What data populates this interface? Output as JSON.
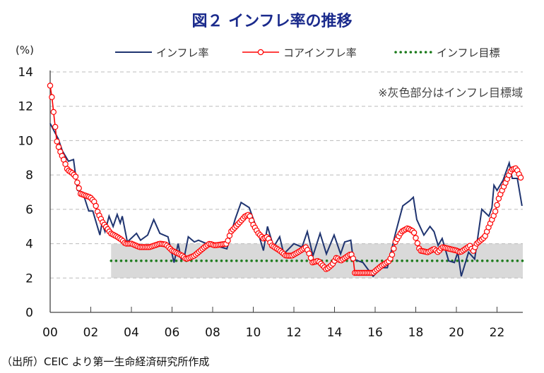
{
  "chart_data": {
    "type": "line",
    "title": "図２ インフレ率の推移",
    "ylabel": "(%)",
    "note": "※灰色部分はインフレ目標域",
    "source": "（出所）CEIC より第一生命経済研究所作成",
    "ylim": [
      0,
      14
    ],
    "xlim": [
      2000,
      2023.3
    ],
    "yticks": [
      "0",
      "2",
      "4",
      "6",
      "8",
      "10",
      "12",
      "14"
    ],
    "xticks": [
      {
        "year": 2000,
        "label": "00"
      },
      {
        "year": 2002,
        "label": "02"
      },
      {
        "year": 2004,
        "label": "04"
      },
      {
        "year": 2006,
        "label": "06"
      },
      {
        "year": 2008,
        "label": "08"
      },
      {
        "year": 2010,
        "label": "10"
      },
      {
        "year": 2012,
        "label": "12"
      },
      {
        "year": 2014,
        "label": "14"
      },
      {
        "year": 2016,
        "label": "16"
      },
      {
        "year": 2018,
        "label": "18"
      },
      {
        "year": 2020,
        "label": "20"
      },
      {
        "year": 2022,
        "label": "22"
      }
    ],
    "grid": true,
    "legend_position": "top-right",
    "target_band": {
      "from_year": 2003,
      "low": 2,
      "high": 4,
      "color": "#d9d9d9"
    },
    "series": [
      {
        "name": "インフレ率",
        "color": "#1f3470",
        "style": "line",
        "points": [
          [
            2000,
            11.0
          ],
          [
            2000.4,
            10.1
          ],
          [
            2000.6,
            9.4
          ],
          [
            2000.9,
            8.8
          ],
          [
            2001.15,
            8.9
          ],
          [
            2001.35,
            7.1
          ],
          [
            2001.6,
            7.0
          ],
          [
            2001.9,
            5.9
          ],
          [
            2002.1,
            5.9
          ],
          [
            2002.45,
            4.5
          ],
          [
            2002.55,
            5.2
          ],
          [
            2002.7,
            4.7
          ],
          [
            2002.9,
            5.6
          ],
          [
            2003.1,
            5.0
          ],
          [
            2003.3,
            5.7
          ],
          [
            2003.45,
            5.2
          ],
          [
            2003.55,
            5.6
          ],
          [
            2003.8,
            4.1
          ],
          [
            2004.25,
            4.6
          ],
          [
            2004.45,
            4.2
          ],
          [
            2004.8,
            4.5
          ],
          [
            2005.1,
            5.4
          ],
          [
            2005.4,
            4.6
          ],
          [
            2005.8,
            4.4
          ],
          [
            2006.1,
            2.9
          ],
          [
            2006.3,
            4.0
          ],
          [
            2006.45,
            3.1
          ],
          [
            2006.6,
            3.2
          ],
          [
            2006.8,
            4.4
          ],
          [
            2007.1,
            4.1
          ],
          [
            2007.3,
            4.2
          ],
          [
            2007.7,
            4.0
          ],
          [
            2008.1,
            3.9
          ],
          [
            2008.7,
            3.7
          ],
          [
            2009.1,
            5.4
          ],
          [
            2009.4,
            6.4
          ],
          [
            2009.8,
            6.1
          ],
          [
            2010.25,
            4.6
          ],
          [
            2010.5,
            3.6
          ],
          [
            2010.7,
            5.0
          ],
          [
            2011.0,
            3.8
          ],
          [
            2011.3,
            4.4
          ],
          [
            2011.5,
            3.4
          ],
          [
            2012.0,
            4.0
          ],
          [
            2012.4,
            3.8
          ],
          [
            2012.66,
            4.7
          ],
          [
            2012.94,
            3.3
          ],
          [
            2013.29,
            4.6
          ],
          [
            2013.6,
            3.4
          ],
          [
            2013.98,
            4.5
          ],
          [
            2014.3,
            3.4
          ],
          [
            2014.5,
            4.1
          ],
          [
            2014.8,
            4.2
          ],
          [
            2014.92,
            3.1
          ],
          [
            2015.4,
            2.9
          ],
          [
            2015.9,
            2.1
          ],
          [
            2016.3,
            2.6
          ],
          [
            2016.6,
            2.6
          ],
          [
            2017.0,
            4.6
          ],
          [
            2017.36,
            6.2
          ],
          [
            2017.7,
            6.5
          ],
          [
            2017.88,
            6.7
          ],
          [
            2018.05,
            5.4
          ],
          [
            2018.4,
            4.5
          ],
          [
            2018.7,
            5.0
          ],
          [
            2018.9,
            4.7
          ],
          [
            2019.1,
            3.9
          ],
          [
            2019.3,
            4.3
          ],
          [
            2019.62,
            3.0
          ],
          [
            2019.9,
            2.9
          ],
          [
            2020.07,
            3.5
          ],
          [
            2020.24,
            2.1
          ],
          [
            2020.6,
            3.5
          ],
          [
            2020.9,
            3.1
          ],
          [
            2021.25,
            6.0
          ],
          [
            2021.6,
            5.6
          ],
          [
            2021.75,
            6.1
          ],
          [
            2021.85,
            7.4
          ],
          [
            2022.0,
            7.1
          ],
          [
            2022.3,
            7.7
          ],
          [
            2022.6,
            8.7
          ],
          [
            2022.75,
            7.8
          ],
          [
            2023.0,
            7.8
          ],
          [
            2023.23,
            6.2
          ]
        ]
      },
      {
        "name": "コアインフレ率",
        "color": "#ff0000",
        "style": "line-marker",
        "points": [
          [
            2000,
            13.2
          ],
          [
            2000.1,
            12.4
          ],
          [
            2000.2,
            11.3
          ],
          [
            2000.27,
            10.6
          ],
          [
            2000.32,
            10.0
          ],
          [
            2000.45,
            9.5
          ],
          [
            2000.55,
            9.2
          ],
          [
            2000.7,
            8.8
          ],
          [
            2000.85,
            8.3
          ],
          [
            2001.1,
            8.1
          ],
          [
            2001.25,
            7.9
          ],
          [
            2001.4,
            7.3
          ],
          [
            2001.5,
            6.9
          ],
          [
            2001.97,
            6.7
          ],
          [
            2002.2,
            6.4
          ],
          [
            2002.35,
            5.8
          ],
          [
            2002.6,
            5.2
          ],
          [
            2002.8,
            4.9
          ],
          [
            2002.98,
            4.6
          ],
          [
            2003.3,
            4.4
          ],
          [
            2003.55,
            4.2
          ],
          [
            2003.7,
            4.0
          ],
          [
            2004.0,
            4.0
          ],
          [
            2004.4,
            3.8
          ],
          [
            2004.9,
            3.8
          ],
          [
            2005.4,
            4.0
          ],
          [
            2005.7,
            3.95
          ],
          [
            2006.0,
            3.6
          ],
          [
            2006.5,
            3.3
          ],
          [
            2006.7,
            3.1
          ],
          [
            2007.1,
            3.3
          ],
          [
            2007.6,
            3.8
          ],
          [
            2007.85,
            4.0
          ],
          [
            2008.1,
            3.9
          ],
          [
            2008.7,
            4.0
          ],
          [
            2008.9,
            4.7
          ],
          [
            2009.3,
            5.2
          ],
          [
            2009.6,
            5.6
          ],
          [
            2009.8,
            5.7
          ],
          [
            2010.0,
            5.1
          ],
          [
            2010.25,
            4.6
          ],
          [
            2010.5,
            4.3
          ],
          [
            2010.7,
            4.4
          ],
          [
            2010.9,
            3.9
          ],
          [
            2011.3,
            3.6
          ],
          [
            2011.6,
            3.3
          ],
          [
            2011.9,
            3.3
          ],
          [
            2012.2,
            3.5
          ],
          [
            2012.6,
            3.8
          ],
          [
            2012.8,
            3.3
          ],
          [
            2012.9,
            2.9
          ],
          [
            2013.2,
            3.0
          ],
          [
            2013.6,
            2.5
          ],
          [
            2013.9,
            2.8
          ],
          [
            2014.1,
            3.2
          ],
          [
            2014.3,
            3.0
          ],
          [
            2014.8,
            3.4
          ],
          [
            2014.9,
            3.3
          ],
          [
            2015.0,
            2.3
          ],
          [
            2015.9,
            2.3
          ],
          [
            2016.3,
            2.7
          ],
          [
            2016.7,
            3.0
          ],
          [
            2016.85,
            3.4
          ],
          [
            2017.0,
            4.1
          ],
          [
            2017.3,
            4.7
          ],
          [
            2017.6,
            4.9
          ],
          [
            2017.9,
            4.7
          ],
          [
            2018.2,
            3.6
          ],
          [
            2018.6,
            3.5
          ],
          [
            2018.9,
            3.7
          ],
          [
            2019.1,
            3.5
          ],
          [
            2019.3,
            3.8
          ],
          [
            2020.0,
            3.6
          ],
          [
            2020.2,
            3.5
          ],
          [
            2020.7,
            3.9
          ],
          [
            2020.8,
            3.5
          ],
          [
            2021.0,
            4.0
          ],
          [
            2021.4,
            4.4
          ],
          [
            2021.6,
            5.0
          ],
          [
            2021.9,
            5.8
          ],
          [
            2022.1,
            6.7
          ],
          [
            2022.4,
            7.5
          ],
          [
            2022.7,
            8.3
          ],
          [
            2022.95,
            8.4
          ],
          [
            2023.1,
            8.0
          ],
          [
            2023.23,
            7.7
          ]
        ]
      },
      {
        "name": "インフレ目標",
        "color": "#1a7a1a",
        "style": "dotted",
        "points": [
          [
            2003,
            3
          ],
          [
            2023.3,
            3
          ]
        ]
      }
    ]
  }
}
